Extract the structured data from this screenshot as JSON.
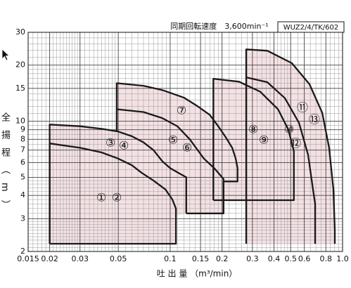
{
  "chart_data": {
    "type": "line",
    "title": "同期回転速度　3,600min⁻¹",
    "model": "WUZ2/4/TK/602",
    "x_label": "吐 出 量 （m³/min）",
    "y_label": "全揚程（m）",
    "log_x": true,
    "log_y": true,
    "grid": true,
    "fill_color": "#f4e1e4",
    "line_color": "#1a1a1a",
    "xlim": [
      0.015,
      1
    ],
    "ylim": [
      2,
      30
    ],
    "xticks": [
      0.015,
      0.02,
      0.03,
      0.05,
      0.1,
      0.15,
      0.2,
      0.3,
      0.4,
      0.5,
      0.6,
      0.8,
      {
        "value": 1,
        "label": "1.0"
      }
    ],
    "yticks": [
      2,
      3,
      4,
      5,
      6,
      7,
      8,
      9,
      10,
      15,
      20,
      30
    ],
    "x_minor_grid": [
      0.016,
      0.017,
      0.018,
      0.019,
      0.021,
      0.022,
      0.023,
      0.024,
      0.025,
      0.026,
      0.027,
      0.028,
      0.029,
      0.032,
      0.034,
      0.036,
      0.038,
      0.04,
      0.042,
      0.044,
      0.046,
      0.048,
      0.055,
      0.06,
      0.065,
      0.07,
      0.075,
      0.08,
      0.085,
      0.09,
      0.095,
      0.11,
      0.12,
      0.13,
      0.14,
      0.16,
      0.17,
      0.18,
      0.19,
      0.22,
      0.24,
      0.26,
      0.28,
      0.32,
      0.34,
      0.36,
      0.38,
      0.42,
      0.44,
      0.46,
      0.48,
      0.55,
      0.65,
      0.7,
      0.75,
      0.85,
      0.9,
      0.95
    ],
    "y_minor_grid": [
      2.1,
      2.2,
      2.3,
      2.4,
      2.5,
      2.6,
      2.7,
      2.8,
      2.9,
      3.2,
      3.4,
      3.6,
      3.8,
      4.2,
      4.4,
      4.6,
      4.8,
      5.5,
      6.5,
      7.5,
      8.5,
      9.5,
      11,
      12,
      13,
      14,
      16,
      17,
      18,
      19,
      22,
      24,
      26,
      28
    ],
    "series": [
      {
        "labels": [
          "①",
          "②"
        ],
        "x": [
          0.02,
          0.02,
          0.03,
          0.04,
          0.05,
          0.06,
          0.068,
          0.08,
          0.094,
          0.103,
          0.108,
          0.108,
          0.02
        ],
        "y": [
          2.2,
          7.6,
          7.2,
          6.8,
          6.3,
          5.8,
          5.3,
          4.8,
          4.3,
          3.8,
          3.4,
          2.2,
          2.2
        ]
      },
      {
        "labels": [
          "③",
          "④"
        ],
        "x": [
          0.02,
          0.02,
          0.03,
          0.04,
          0.05,
          0.06,
          0.07,
          0.08,
          0.09,
          0.1,
          0.115,
          0.124,
          0.124
        ],
        "y": [
          2.2,
          9.6,
          9.4,
          9.1,
          8.8,
          8.3,
          7.7,
          7.0,
          6.1,
          5.6,
          5.2,
          5.0,
          3.2
        ]
      },
      {
        "labels": [
          "⑦"
        ],
        "x": [
          0.049,
          0.049,
          0.07,
          0.09,
          0.12,
          0.143,
          0.17,
          0.19,
          0.21,
          0.229,
          0.24,
          0.246,
          0.246,
          0.204,
          0.204,
          0.124
        ],
        "y": [
          8.8,
          16,
          15.5,
          14.7,
          13.4,
          12.1,
          10.8,
          9.4,
          8.2,
          7.2,
          6.3,
          5.6,
          4.75,
          4.75,
          3.2,
          3.2
        ]
      },
      {
        "labels": [
          "⑤",
          "⑥"
        ],
        "x": [
          0.049,
          0.07,
          0.09,
          0.11,
          0.13,
          0.157,
          0.18,
          0.204,
          0.204
        ],
        "y": [
          11.6,
          11.2,
          10.4,
          9.4,
          8.0,
          6.3,
          5.6,
          4.9,
          3.2
        ]
      },
      {
        "labels": [
          "⑧",
          "⑨"
        ],
        "x": [
          0.178,
          0.178,
          0.251,
          0.333,
          0.422,
          0.485,
          0.522,
          0.522,
          0.178
        ],
        "y": [
          3.77,
          16.9,
          16.3,
          14.4,
          11.6,
          9.0,
          6.9,
          3.77,
          3.77
        ]
      },
      {
        "labels": [
          "⑪",
          "⑬"
        ],
        "x": [
          0.276,
          0.276,
          0.366,
          0.508,
          0.643,
          0.762,
          0.836,
          0.885,
          0.902,
          0.902
        ],
        "y": [
          2.2,
          24.3,
          23.9,
          20.5,
          15.8,
          11.1,
          7.2,
          4.3,
          2.59,
          2.2
        ]
      },
      {
        "labels": [
          "⑩",
          "⑫"
        ],
        "x": [
          0.276,
          0.366,
          0.463,
          0.559,
          0.631,
          0.674,
          0.693,
          0.693
        ],
        "y": [
          17.2,
          16.2,
          13.3,
          9.8,
          6.6,
          4.3,
          3.6,
          2.2
        ]
      }
    ]
  }
}
